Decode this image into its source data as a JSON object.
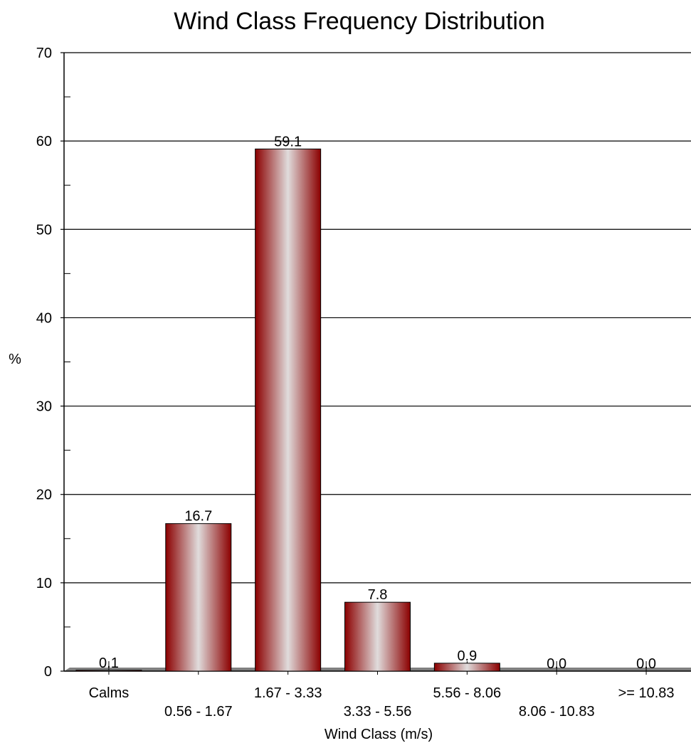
{
  "chart_data": {
    "type": "bar",
    "title": "Wind Class Frequency Distribution",
    "xlabel": "Wind Class (m/s)",
    "ylabel": "%",
    "ylim": [
      0,
      70
    ],
    "yticks": [
      "0",
      "10",
      "20",
      "30",
      "40",
      "50",
      "60",
      "70"
    ],
    "categories": [
      "Calms",
      "0.56 - 1.67",
      "1.67 - 3.33",
      "3.33 - 5.56",
      "5.56 - 8.06",
      "8.06 - 10.83",
      ">= 10.83"
    ],
    "values": [
      0.1,
      16.7,
      59.1,
      7.8,
      0.9,
      0.0,
      0.0
    ],
    "value_labels": [
      "0.1",
      "16.7",
      "59.1",
      "7.8",
      "0.9",
      "0.0",
      "0.0"
    ],
    "grid": true,
    "legend": "none",
    "bar_color": "#8b0000",
    "bar_highlight": "#e0dcdc",
    "floor_color": "#808080"
  }
}
